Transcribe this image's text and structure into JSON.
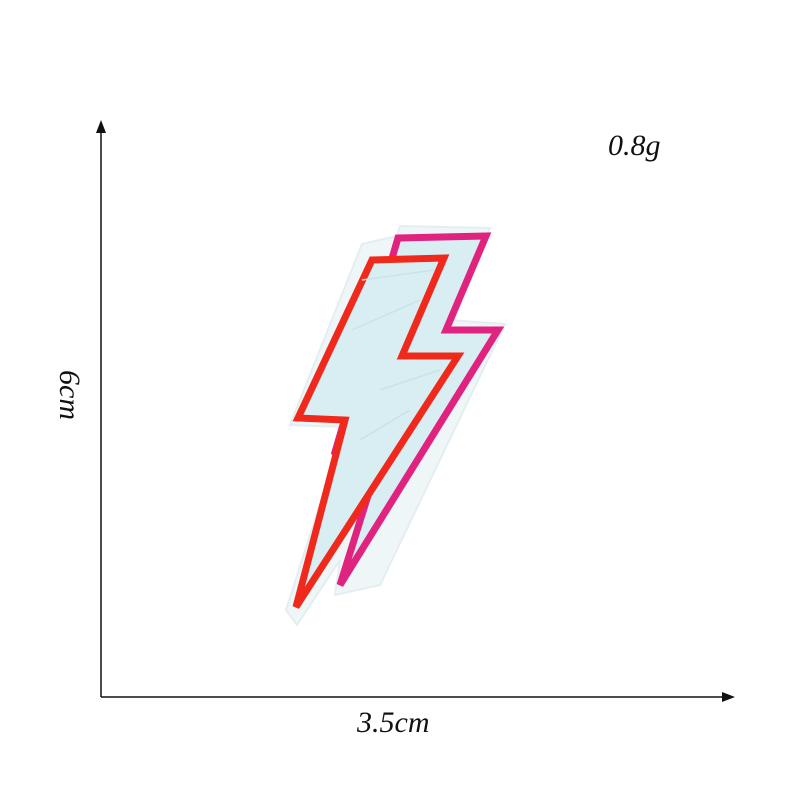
{
  "labels": {
    "weight": "0.8g",
    "width": "3.5cm",
    "height": "6cm"
  },
  "colors": {
    "axis": "#111111",
    "patch_fill": "#d9eef3",
    "patch_backing": "#eef6f8",
    "outline_red": "#ef2a1c",
    "outline_pink": "#e0237f"
  },
  "icons": {
    "patch": "lightning-bolt-embroidered-patch-icon",
    "axis_up": "arrow-up-icon",
    "axis_right": "arrow-right-icon"
  }
}
